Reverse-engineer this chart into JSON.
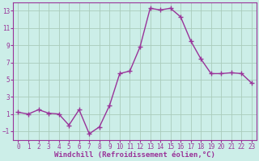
{
  "x": [
    0,
    1,
    2,
    3,
    4,
    5,
    6,
    7,
    8,
    9,
    10,
    11,
    12,
    13,
    14,
    15,
    16,
    17,
    18,
    19,
    20,
    21,
    22,
    23
  ],
  "y": [
    1.2,
    1.0,
    1.5,
    1.1,
    1.0,
    -0.3,
    1.5,
    -1.3,
    -0.5,
    2.0,
    5.7,
    6.0,
    8.8,
    13.3,
    13.1,
    13.3,
    12.3,
    9.5,
    7.4,
    5.7,
    5.7,
    5.8,
    5.7,
    4.6
  ],
  "line_color": "#993399",
  "marker": "+",
  "marker_size": 4,
  "bg_color": "#cceee8",
  "grid_color": "#aaccbb",
  "xlabel": "Windchill (Refroidissement éolien,°C)",
  "xlabel_fontsize": 6.5,
  "ylim": [
    -2,
    14
  ],
  "xlim": [
    -0.5,
    23.5
  ],
  "yticks": [
    -1,
    1,
    3,
    5,
    7,
    9,
    11,
    13
  ],
  "xticks": [
    0,
    1,
    2,
    3,
    4,
    5,
    6,
    7,
    8,
    9,
    10,
    11,
    12,
    13,
    14,
    15,
    16,
    17,
    18,
    19,
    20,
    21,
    22,
    23
  ],
  "tick_fontsize": 5.5,
  "label_color": "#993399",
  "spine_color": "#993399",
  "line_width": 1.0
}
